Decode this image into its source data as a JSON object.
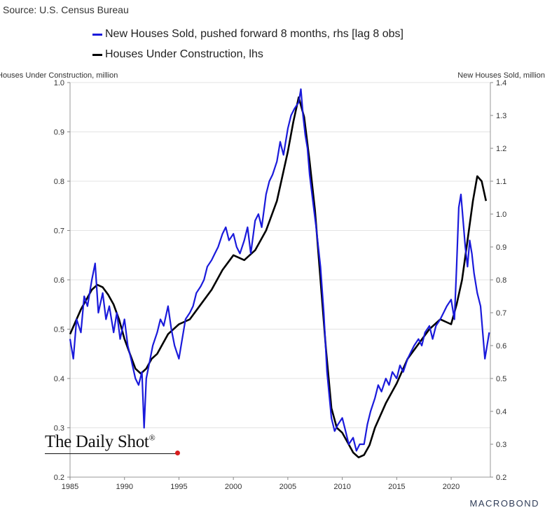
{
  "source": "Source: U.S. Census Bureau",
  "legend": [
    {
      "label": "New Houses Sold, pushed forward 8 months, rhs [lag 8 obs]",
      "color": "#1a1adb"
    },
    {
      "label": "Houses Under Construction, lhs",
      "color": "#000000"
    }
  ],
  "watermark": "The Daily Shot",
  "watermark_mark": "®",
  "brand": "MACROBOND",
  "chart_data": {
    "type": "line",
    "ylabel_left": "Houses Under Construction, million",
    "ylabel_right": "New Houses Sold, million",
    "xlim": [
      1985,
      2023.6
    ],
    "ylim_left": [
      0.2,
      1.0
    ],
    "ylim_right": [
      0.2,
      1.4
    ],
    "x_ticks": [
      "1985",
      "1990",
      "1995",
      "2000",
      "2005",
      "2010",
      "2015",
      "2020"
    ],
    "y_ticks_left": [
      "0.2",
      "0.3",
      "0.4",
      "0.5",
      "0.6",
      "0.7",
      "0.8",
      "0.9",
      "1.0"
    ],
    "y_ticks_right": [
      "0.2",
      "0.3",
      "0.4",
      "0.5",
      "0.6",
      "0.7",
      "0.8",
      "0.9",
      "1.0",
      "1.1",
      "1.2",
      "1.3",
      "1.4"
    ],
    "grid": "horizontal",
    "series": [
      {
        "name": "Houses Under Construction, lhs",
        "axis": "left",
        "color": "#000000",
        "x": [
          1985.0,
          1986.0,
          1987.0,
          1987.5,
          1988.0,
          1988.5,
          1989.0,
          1989.5,
          1990.0,
          1990.5,
          1991.0,
          1991.5,
          1992.0,
          1992.5,
          1993.0,
          1994.0,
          1995.0,
          1996.0,
          1997.0,
          1998.0,
          1999.0,
          2000.0,
          2001.0,
          2002.0,
          2003.0,
          2004.0,
          2005.0,
          2005.5,
          2006.0,
          2006.5,
          2007.0,
          2007.5,
          2008.0,
          2008.5,
          2009.0,
          2009.5,
          2010.0,
          2010.5,
          2011.0,
          2011.5,
          2012.0,
          2012.5,
          2013.0,
          2014.0,
          2015.0,
          2016.0,
          2017.0,
          2018.0,
          2019.0,
          2020.0,
          2020.5,
          2021.0,
          2021.5,
          2022.0,
          2022.4,
          2022.8,
          2023.2
        ],
        "y": [
          0.49,
          0.54,
          0.58,
          0.59,
          0.585,
          0.57,
          0.55,
          0.52,
          0.48,
          0.45,
          0.42,
          0.41,
          0.42,
          0.44,
          0.45,
          0.49,
          0.51,
          0.52,
          0.55,
          0.58,
          0.62,
          0.65,
          0.64,
          0.66,
          0.7,
          0.76,
          0.86,
          0.92,
          0.97,
          0.93,
          0.84,
          0.74,
          0.6,
          0.46,
          0.34,
          0.3,
          0.29,
          0.27,
          0.25,
          0.24,
          0.245,
          0.265,
          0.3,
          0.35,
          0.39,
          0.44,
          0.47,
          0.5,
          0.52,
          0.51,
          0.55,
          0.6,
          0.68,
          0.76,
          0.81,
          0.8,
          0.76
        ]
      },
      {
        "name": "New Houses Sold, pushed forward 8 months, rhs [lag 8 obs]",
        "axis": "right",
        "color": "#1a1adb",
        "x": [
          1985.0,
          1985.3,
          1985.6,
          1986.0,
          1986.3,
          1986.6,
          1987.0,
          1987.3,
          1987.6,
          1988.0,
          1988.3,
          1988.6,
          1989.0,
          1989.3,
          1989.6,
          1990.0,
          1990.3,
          1990.6,
          1991.0,
          1991.3,
          1991.6,
          1991.8,
          1992.0,
          1992.3,
          1992.6,
          1993.0,
          1993.3,
          1993.6,
          1994.0,
          1994.3,
          1994.6,
          1995.0,
          1995.3,
          1995.6,
          1996.0,
          1996.3,
          1996.6,
          1997.0,
          1997.3,
          1997.6,
          1998.0,
          1998.3,
          1998.6,
          1999.0,
          1999.3,
          1999.6,
          2000.0,
          2000.3,
          2000.6,
          2001.0,
          2001.3,
          2001.6,
          2002.0,
          2002.3,
          2002.6,
          2003.0,
          2003.3,
          2003.6,
          2004.0,
          2004.3,
          2004.6,
          2005.0,
          2005.3,
          2005.6,
          2006.0,
          2006.2,
          2006.4,
          2006.6,
          2006.8,
          2007.0,
          2007.3,
          2007.6,
          2008.0,
          2008.3,
          2008.6,
          2009.0,
          2009.3,
          2009.6,
          2010.0,
          2010.3,
          2010.6,
          2011.0,
          2011.3,
          2011.6,
          2012.0,
          2012.3,
          2012.6,
          2013.0,
          2013.3,
          2013.6,
          2014.0,
          2014.3,
          2014.6,
          2015.0,
          2015.3,
          2015.6,
          2016.0,
          2016.3,
          2016.6,
          2017.0,
          2017.3,
          2017.6,
          2018.0,
          2018.3,
          2018.6,
          2019.0,
          2019.3,
          2019.6,
          2020.0,
          2020.3,
          2020.5,
          2020.7,
          2020.9,
          2021.1,
          2021.3,
          2021.5,
          2021.7,
          2021.9,
          2022.1,
          2022.4,
          2022.7,
          2022.9,
          2023.1,
          2023.3,
          2023.5
        ],
        "y": [
          0.62,
          0.56,
          0.68,
          0.64,
          0.75,
          0.72,
          0.8,
          0.85,
          0.7,
          0.76,
          0.68,
          0.72,
          0.64,
          0.7,
          0.62,
          0.68,
          0.6,
          0.56,
          0.5,
          0.48,
          0.52,
          0.35,
          0.5,
          0.55,
          0.6,
          0.64,
          0.68,
          0.66,
          0.72,
          0.65,
          0.6,
          0.56,
          0.62,
          0.68,
          0.7,
          0.72,
          0.76,
          0.78,
          0.8,
          0.84,
          0.86,
          0.88,
          0.9,
          0.94,
          0.96,
          0.92,
          0.94,
          0.9,
          0.88,
          0.92,
          0.96,
          0.88,
          0.98,
          1.0,
          0.96,
          1.06,
          1.1,
          1.12,
          1.16,
          1.22,
          1.18,
          1.26,
          1.3,
          1.32,
          1.34,
          1.38,
          1.3,
          1.24,
          1.2,
          1.12,
          1.04,
          0.96,
          0.84,
          0.7,
          0.52,
          0.38,
          0.34,
          0.36,
          0.38,
          0.34,
          0.3,
          0.32,
          0.28,
          0.3,
          0.3,
          0.36,
          0.4,
          0.44,
          0.48,
          0.46,
          0.5,
          0.48,
          0.52,
          0.5,
          0.54,
          0.52,
          0.56,
          0.58,
          0.6,
          0.62,
          0.6,
          0.64,
          0.66,
          0.62,
          0.66,
          0.68,
          0.7,
          0.72,
          0.74,
          0.68,
          0.84,
          1.02,
          1.06,
          0.98,
          0.9,
          0.84,
          0.92,
          0.88,
          0.82,
          0.76,
          0.72,
          0.64,
          0.56,
          0.6,
          0.64
        ]
      }
    ]
  }
}
